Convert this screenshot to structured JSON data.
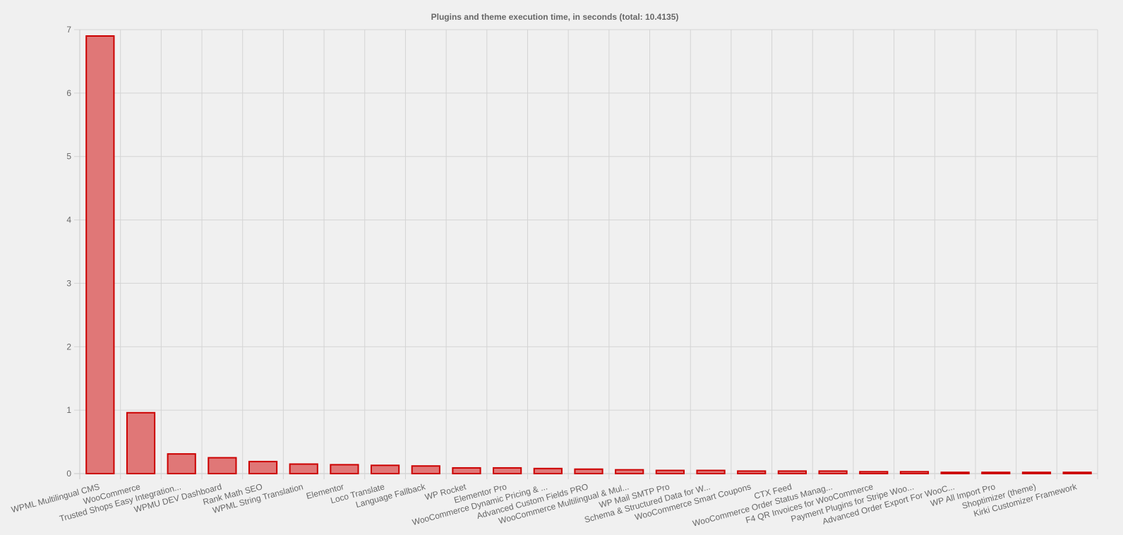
{
  "chart_data": {
    "type": "bar",
    "title": "Plugins and theme execution time, in seconds (total: 10.4135)",
    "xlabel": "",
    "ylabel": "",
    "ylim": [
      0,
      7
    ],
    "yticks": [
      "0",
      "1",
      "2",
      "3",
      "4",
      "5",
      "6",
      "7"
    ],
    "grid": true,
    "legend": "none",
    "bar_color": "#e07777",
    "bar_border_color": "#cc0000",
    "categories": [
      "WPML Multilingual CMS",
      "WooCommerce",
      "Trusted Shops Easy Integration...",
      "WPMU DEV Dashboard",
      "Rank Math SEO",
      "WPML String Translation",
      "Elementor",
      "Loco Translate",
      "Language Fallback",
      "WP Rocket",
      "Elementor Pro",
      "WooCommerce Dynamic Pricing & ...",
      "Advanced Custom Fields PRO",
      "WooCommerce Multilingual & Mul...",
      "WP Mail SMTP Pro",
      "Schema & Structured Data for W...",
      "WooCommerce Smart Coupons",
      "CTX Feed",
      "WooCommerce Order Status Manag...",
      "F4 QR Invoices for WooCommerce",
      "Payment Plugins for Stripe Woo...",
      "Advanced Order Export For WooC...",
      "WP All Import Pro",
      "Shoptimizer (theme)",
      "Kirki Customizer Framework"
    ],
    "values": [
      6.9,
      0.96,
      0.31,
      0.25,
      0.19,
      0.15,
      0.14,
      0.13,
      0.12,
      0.09,
      0.09,
      0.08,
      0.07,
      0.06,
      0.05,
      0.05,
      0.04,
      0.04,
      0.04,
      0.03,
      0.03,
      0.02,
      0.02,
      0.02,
      0.02
    ]
  }
}
